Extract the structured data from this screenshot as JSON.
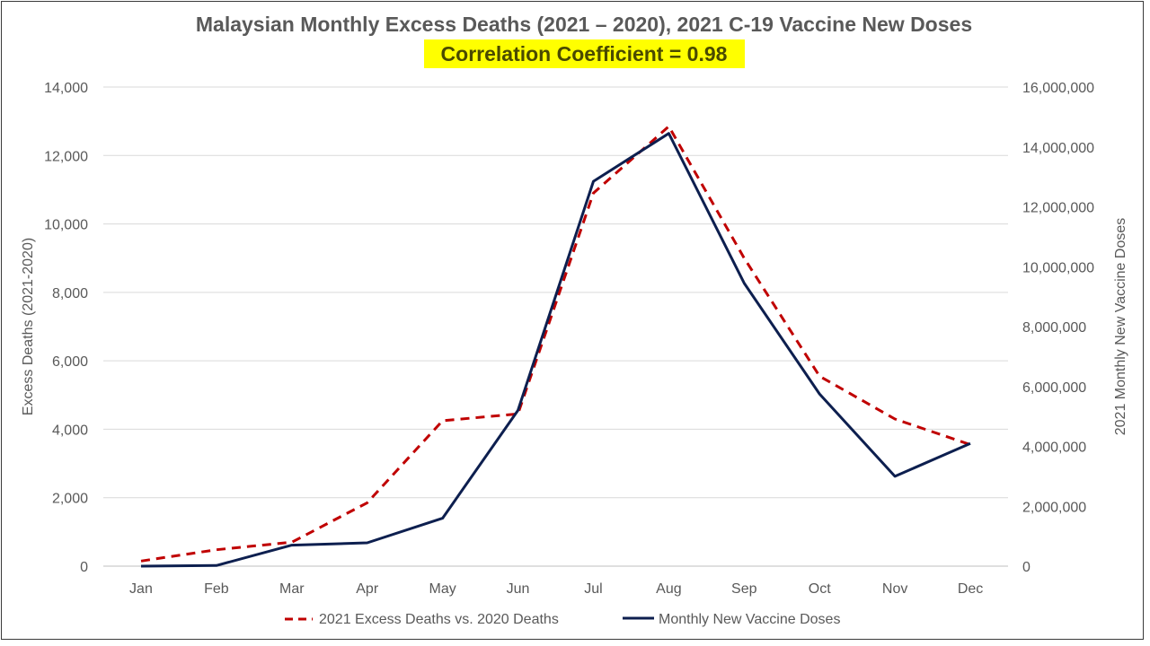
{
  "chart_data": {
    "type": "line",
    "title": "Malaysian Monthly Excess Deaths (2021 – 2020), 2021 C-19 Vaccine New Doses",
    "subtitle": "Correlation Coefficient = 0.98",
    "categories": [
      "Jan",
      "Feb",
      "Mar",
      "Apr",
      "May",
      "Jun",
      "Jul",
      "Aug",
      "Sep",
      "Oct",
      "Nov",
      "Dec"
    ],
    "y_left": {
      "label": "Excess Deaths (2021-2020)",
      "range": [
        0,
        14000
      ],
      "ticks": [
        "0",
        "2,000",
        "4,000",
        "6,000",
        "8,000",
        "10,000",
        "12,000",
        "14,000"
      ]
    },
    "y_right": {
      "label": "2021 Monthly New Vaccine Doses",
      "range": [
        0,
        16000000
      ],
      "ticks": [
        "0",
        "2,000,000",
        "4,000,000",
        "6,000,000",
        "8,000,000",
        "10,000,000",
        "12,000,000",
        "14,000,000",
        "16,000,000"
      ]
    },
    "series": [
      {
        "name": "2021 Excess Deaths vs. 2020 Deaths",
        "axis": "left",
        "style": "dashed",
        "color": "#c00000",
        "values": [
          150,
          480,
          700,
          1850,
          4250,
          4450,
          10900,
          12850,
          9000,
          5550,
          4300,
          3550
        ]
      },
      {
        "name": "Monthly New Vaccine Doses",
        "axis": "right",
        "style": "solid",
        "color": "#0d1f4f",
        "values": [
          0,
          20000,
          700000,
          780000,
          1600000,
          5200000,
          12850000,
          14450000,
          9450000,
          5750000,
          3000000,
          4100000
        ]
      }
    ],
    "grid": true,
    "legend_position": "bottom",
    "highlight_color": "#ffff00"
  }
}
